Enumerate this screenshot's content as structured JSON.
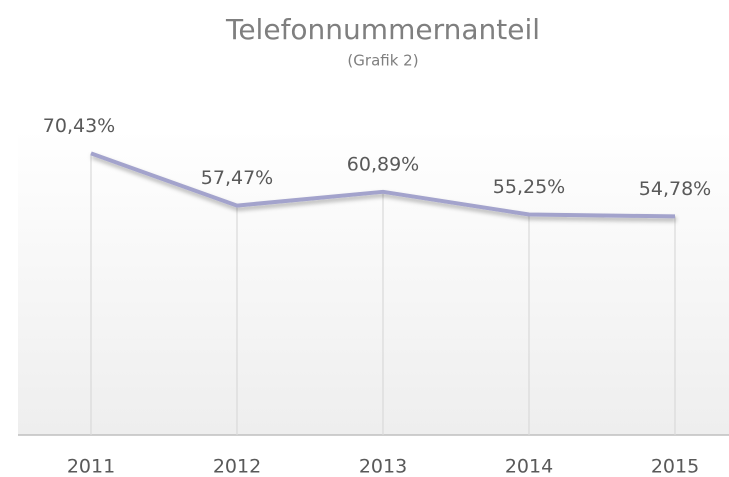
{
  "chart_data": {
    "type": "line",
    "title": "Telefonnummernanteil",
    "subtitle": "(Grafik 2)",
    "categories": [
      "2011",
      "2012",
      "2013",
      "2014",
      "2015"
    ],
    "values": [
      70.43,
      57.47,
      60.89,
      55.25,
      54.78
    ],
    "value_labels": [
      "70,43%",
      "57,47%",
      "60,89%",
      "55,25%",
      "54,78%"
    ],
    "color": "#a3a3cc",
    "ylim": [
      0,
      75
    ]
  }
}
